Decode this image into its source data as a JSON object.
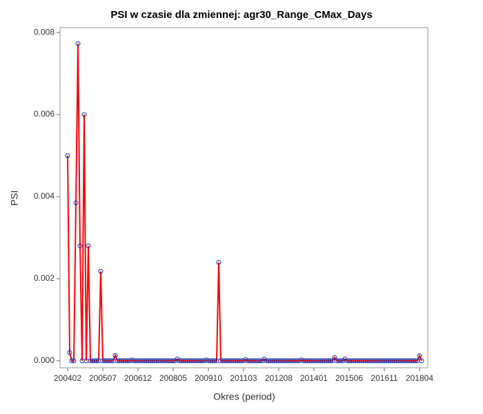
{
  "chart_data": {
    "type": "line",
    "title": "PSI w czasie dla zmiennej: agr30_Range_CMax_Days",
    "x_label": "Okres (period)",
    "y_label": "PSI",
    "categories": [
      "200402",
      null,
      null,
      null,
      null,
      null,
      null,
      null,
      null,
      null,
      null,
      null,
      null,
      null,
      null,
      null,
      null,
      "200507",
      null,
      null,
      null,
      null,
      null,
      null,
      null,
      null,
      null,
      null,
      null,
      null,
      null,
      null,
      null,
      null,
      "200612",
      null,
      null,
      null,
      null,
      null,
      null,
      null,
      null,
      null,
      null,
      null,
      null,
      null,
      null,
      null,
      null,
      "200805",
      null,
      null,
      null,
      null,
      null,
      null,
      null,
      null,
      null,
      null,
      null,
      null,
      null,
      null,
      null,
      null,
      "200910",
      null,
      null,
      null,
      null,
      null,
      null,
      null,
      null,
      null,
      null,
      null,
      null,
      null,
      null,
      null,
      null,
      "201103",
      null,
      null,
      null,
      null,
      null,
      null,
      null,
      null,
      null,
      null,
      null,
      null,
      null,
      null,
      null,
      null,
      "201208",
      null,
      null,
      null,
      null,
      null,
      null,
      null,
      null,
      null,
      null,
      null,
      null,
      null,
      null,
      null,
      null,
      "201401",
      null,
      null,
      null,
      null,
      null,
      null,
      null,
      null,
      null,
      null,
      null,
      null,
      null,
      null,
      null,
      null,
      "201506",
      null,
      null,
      null,
      null,
      null,
      null,
      null,
      null,
      null,
      null,
      null,
      null,
      null,
      null,
      null,
      null,
      "201611",
      null,
      null,
      null,
      null,
      null,
      null,
      null,
      null,
      null,
      null,
      null,
      null,
      null,
      null,
      null,
      null,
      "201804",
      null
    ],
    "values": [
      0.005,
      0.0002,
      0,
      0,
      0.00385,
      0.00773,
      0.0028,
      0,
      0.006,
      0,
      0.0028,
      0,
      0,
      0,
      0,
      0,
      0.00218,
      0,
      0,
      0,
      0,
      0,
      0,
      0.00013,
      0,
      0,
      0,
      0,
      0,
      0,
      0,
      2e-05,
      0,
      0,
      0,
      0,
      0,
      0,
      0,
      0,
      0,
      0,
      0,
      0,
      0,
      0,
      0,
      0,
      0,
      0,
      0,
      0,
      0,
      4e-05,
      0,
      0,
      0,
      0,
      0,
      0,
      0,
      0,
      0,
      0,
      0,
      0,
      0,
      2e-05,
      0,
      0,
      0,
      0,
      0,
      0.0024,
      0,
      0,
      0,
      0,
      0,
      0,
      0,
      0,
      0,
      0,
      0,
      0,
      3e-05,
      0,
      0,
      0,
      0,
      0,
      0,
      0,
      0,
      4e-05,
      0,
      0,
      0,
      0,
      0,
      0,
      0,
      0,
      0,
      0,
      0,
      0,
      0,
      0,
      0,
      0,
      0,
      2e-05,
      0,
      0,
      0,
      0,
      0,
      0,
      0,
      0,
      0,
      0,
      0,
      0,
      0,
      0,
      0,
      8e-05,
      0,
      0,
      0,
      0,
      4e-05,
      0,
      0,
      0,
      0,
      0,
      0,
      0,
      0,
      0,
      0,
      0,
      0,
      0,
      0,
      0,
      0,
      0,
      0,
      0,
      0,
      0,
      0,
      0,
      0,
      0,
      0,
      0,
      0,
      0,
      0,
      0,
      0,
      0,
      0,
      0,
      0.00012,
      0
    ],
    "color": "#ff0000",
    "marker_color": "#1a2fa8",
    "ylim": [
      -0.00017,
      0.00812
    ],
    "yticks": [
      {
        "value": 0,
        "label": "0.000"
      },
      {
        "value": 0.002,
        "label": "0.002"
      },
      {
        "value": 0.004,
        "label": "0.004"
      },
      {
        "value": 0.006,
        "label": "0.006"
      },
      {
        "value": 0.008,
        "label": "0.008"
      }
    ],
    "grid": false
  }
}
